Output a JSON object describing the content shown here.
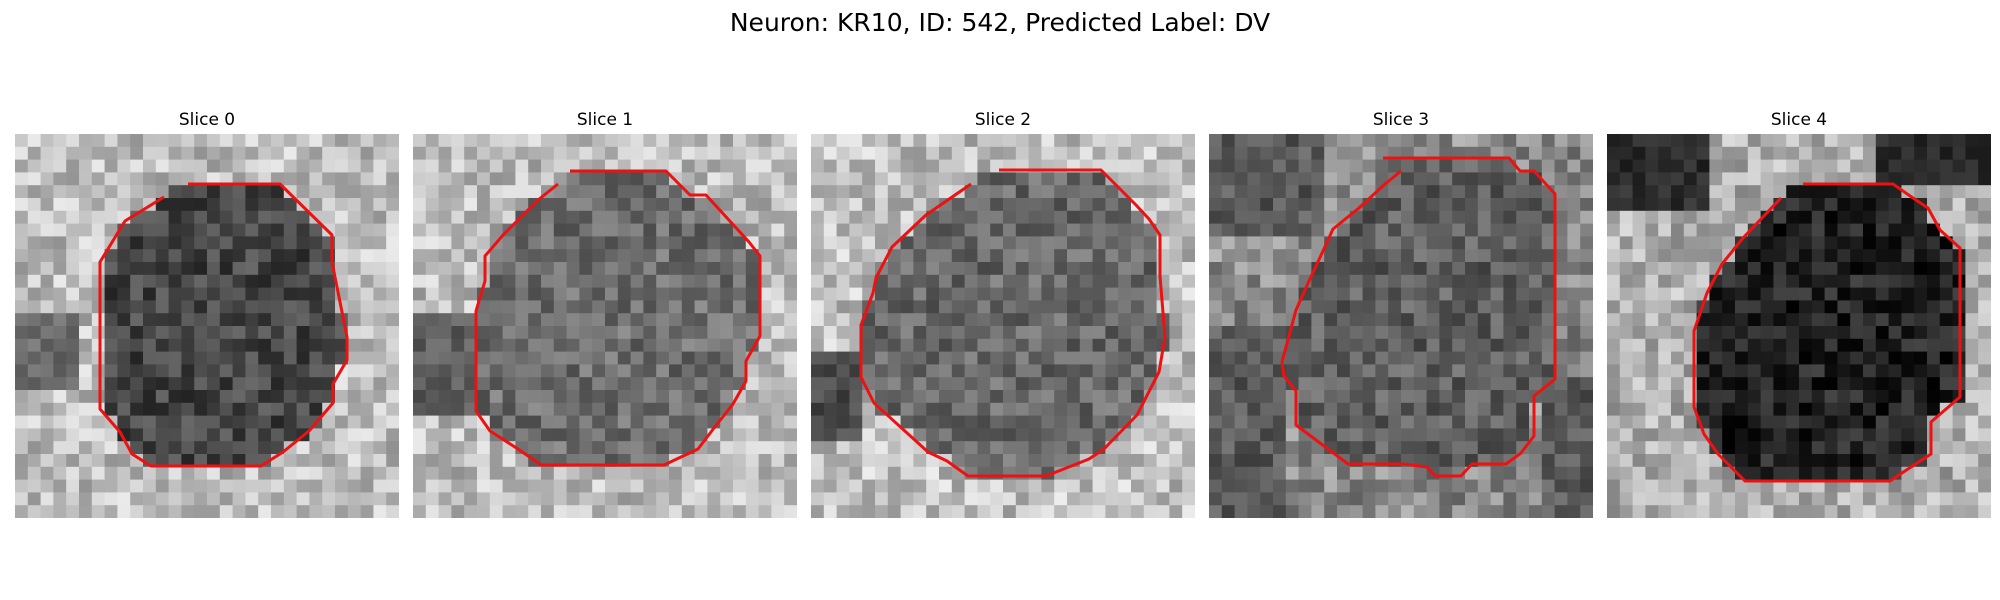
{
  "figure": {
    "title": "Neuron: KR10, ID: 542, Predicted Label: DV",
    "contour_color": "#ee1111",
    "panels": [
      {
        "title": "Slice 0",
        "background": "light"
      },
      {
        "title": "Slice 1",
        "background": "light"
      },
      {
        "title": "Slice 2",
        "background": "light"
      },
      {
        "title": "Slice 3",
        "background": "mixed-dark"
      },
      {
        "title": "Slice 4",
        "background": "dark-corners"
      }
    ]
  }
}
